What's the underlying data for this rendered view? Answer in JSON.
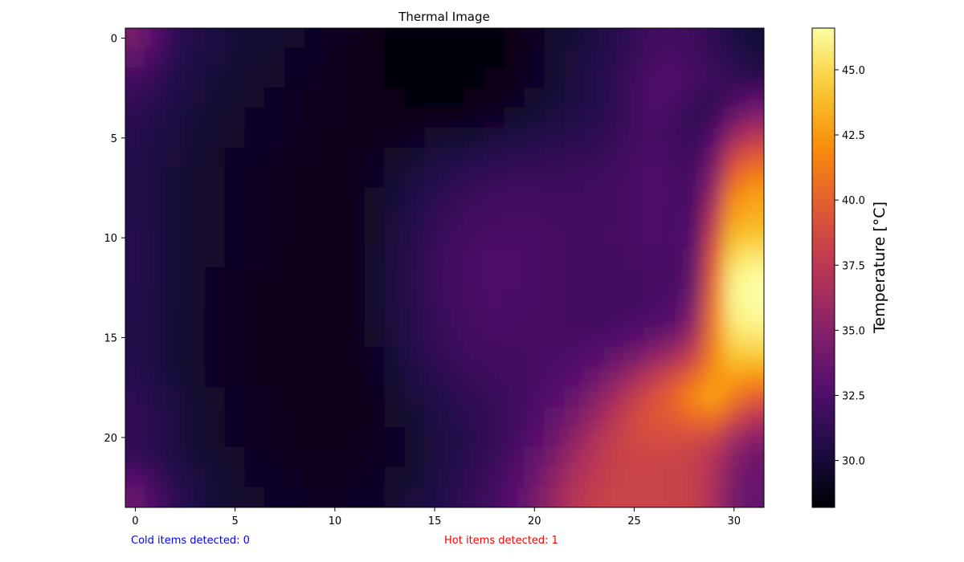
{
  "chart_data": {
    "type": "heatmap",
    "title": "Thermal Image",
    "xlabel": "",
    "ylabel": "",
    "colormap": "inferno",
    "rows": 24,
    "cols": 32,
    "xlim": [
      -0.5,
      31.5
    ],
    "ylim": [
      23.5,
      -0.5
    ],
    "xticks": [
      0,
      5,
      10,
      15,
      20,
      25,
      30
    ],
    "yticks": [
      0,
      5,
      10,
      15,
      20
    ],
    "colorbar": {
      "label": "Temperature [°C]",
      "vmin": 28.2,
      "vmax": 46.6,
      "ticks": [
        "30.0",
        "32.5",
        "35.0",
        "37.5",
        "40.0",
        "42.5",
        "45.0"
      ]
    },
    "values": [
      [
        34.2,
        32.8,
        31.2,
        30.6,
        30.3,
        30.0,
        29.8,
        29.7,
        29.5,
        29.4,
        29.2,
        29.0,
        28.8,
        28.6,
        28.5,
        28.4,
        28.3,
        28.4,
        28.6,
        28.9,
        29.2,
        29.6,
        30.0,
        30.4,
        30.9,
        31.5,
        32.0,
        32.1,
        31.8,
        31.2,
        30.5,
        30.0
      ],
      [
        33.3,
        32.2,
        31.0,
        30.5,
        30.2,
        29.9,
        29.7,
        29.6,
        29.4,
        29.3,
        29.1,
        28.9,
        28.7,
        28.5,
        28.4,
        28.3,
        28.3,
        28.4,
        28.6,
        28.9,
        29.3,
        29.7,
        30.1,
        30.5,
        31.0,
        31.6,
        32.2,
        32.3,
        32.0,
        31.5,
        30.8,
        30.2
      ],
      [
        32.1,
        31.5,
        30.7,
        30.3,
        30.0,
        29.8,
        29.6,
        29.5,
        29.3,
        29.2,
        29.0,
        28.9,
        28.7,
        28.6,
        28.5,
        28.4,
        28.4,
        28.5,
        28.7,
        29.0,
        29.4,
        29.8,
        30.2,
        30.6,
        31.1,
        31.8,
        32.5,
        32.6,
        32.2,
        31.8,
        31.3,
        31.0
      ],
      [
        31.4,
        31.0,
        30.5,
        30.1,
        29.9,
        29.7,
        29.5,
        29.4,
        29.2,
        29.1,
        29.0,
        28.9,
        28.8,
        28.7,
        28.6,
        28.6,
        28.6,
        28.7,
        28.9,
        29.2,
        29.6,
        30.0,
        30.3,
        30.7,
        31.2,
        31.9,
        32.6,
        32.4,
        31.7,
        31.3,
        32.2,
        33.1
      ],
      [
        31.0,
        30.7,
        30.3,
        30.0,
        29.8,
        29.6,
        29.4,
        29.3,
        29.2,
        29.1,
        29.0,
        28.9,
        28.9,
        28.9,
        28.9,
        29.0,
        29.0,
        29.2,
        29.4,
        29.7,
        30.0,
        30.3,
        30.6,
        30.9,
        31.3,
        31.9,
        32.4,
        32.0,
        31.3,
        31.8,
        33.8,
        35.1
      ],
      [
        30.8,
        30.5,
        30.2,
        29.9,
        29.7,
        29.5,
        29.4,
        29.3,
        29.1,
        29.0,
        28.9,
        28.9,
        29.0,
        29.1,
        29.3,
        29.5,
        29.7,
        29.9,
        30.2,
        30.4,
        30.6,
        30.8,
        31.0,
        31.2,
        31.5,
        32.0,
        32.3,
        31.9,
        31.5,
        32.8,
        36.1,
        37.6
      ],
      [
        30.7,
        30.4,
        30.1,
        29.8,
        29.6,
        29.4,
        29.3,
        29.2,
        29.1,
        29.0,
        28.9,
        29.0,
        29.2,
        29.5,
        29.8,
        30.2,
        30.5,
        30.7,
        30.9,
        31.1,
        31.2,
        31.3,
        31.4,
        31.5,
        31.8,
        32.2,
        32.4,
        32.1,
        31.9,
        34.0,
        38.4,
        39.8
      ],
      [
        30.6,
        30.3,
        30.0,
        29.7,
        29.5,
        29.4,
        29.2,
        29.1,
        29.0,
        28.9,
        28.9,
        29.1,
        29.4,
        29.8,
        30.2,
        30.7,
        31.0,
        31.3,
        31.5,
        31.6,
        31.6,
        31.6,
        31.7,
        31.8,
        32.0,
        32.3,
        32.5,
        32.2,
        32.2,
        35.0,
        40.2,
        41.6
      ],
      [
        30.6,
        30.3,
        30.0,
        29.7,
        29.5,
        29.3,
        29.2,
        29.1,
        29.0,
        28.9,
        28.9,
        29.1,
        29.5,
        30.0,
        30.5,
        31.0,
        31.4,
        31.7,
        31.9,
        32.0,
        32.0,
        31.9,
        31.9,
        32.0,
        32.1,
        32.3,
        32.5,
        32.3,
        32.3,
        36.2,
        41.8,
        42.8
      ],
      [
        30.7,
        30.3,
        30.0,
        29.7,
        29.5,
        29.3,
        29.2,
        29.1,
        29.0,
        28.9,
        28.9,
        29.1,
        29.5,
        30.1,
        30.7,
        31.3,
        31.7,
        32.0,
        32.1,
        32.2,
        32.2,
        32.1,
        32.0,
        32.0,
        32.1,
        32.3,
        32.4,
        32.3,
        32.5,
        37.5,
        42.8,
        43.4
      ],
      [
        30.8,
        30.4,
        30.0,
        29.7,
        29.5,
        29.3,
        29.2,
        29.1,
        29.0,
        28.9,
        28.9,
        29.1,
        29.5,
        30.2,
        30.9,
        31.5,
        31.9,
        32.2,
        32.3,
        32.3,
        32.3,
        32.2,
        32.1,
        32.1,
        32.2,
        32.3,
        32.4,
        32.3,
        32.8,
        38.5,
        43.9,
        44.3
      ],
      [
        30.8,
        30.4,
        30.0,
        29.7,
        29.5,
        29.3,
        29.2,
        29.0,
        28.9,
        28.8,
        28.9,
        29.1,
        29.6,
        30.2,
        31.0,
        31.6,
        32.1,
        32.3,
        32.4,
        32.4,
        32.3,
        32.2,
        32.1,
        32.1,
        32.1,
        32.2,
        32.3,
        32.2,
        33.2,
        39.4,
        45.0,
        45.6
      ],
      [
        30.8,
        30.4,
        30.0,
        29.7,
        29.4,
        29.2,
        29.1,
        29.0,
        28.9,
        28.8,
        28.9,
        29.1,
        29.6,
        30.3,
        31.0,
        31.7,
        32.1,
        32.3,
        32.4,
        32.4,
        32.3,
        32.2,
        32.1,
        32.0,
        32.0,
        32.1,
        32.2,
        32.2,
        33.6,
        40.0,
        45.9,
        46.5
      ],
      [
        30.7,
        30.3,
        30.0,
        29.7,
        29.4,
        29.2,
        29.0,
        28.9,
        28.8,
        28.8,
        28.9,
        29.1,
        29.6,
        30.3,
        31.0,
        31.6,
        32.0,
        32.3,
        32.4,
        32.3,
        32.3,
        32.2,
        32.1,
        32.0,
        32.0,
        32.1,
        32.2,
        32.4,
        34.2,
        40.6,
        46.1,
        46.6
      ],
      [
        30.7,
        30.3,
        29.9,
        29.6,
        29.4,
        29.2,
        29.0,
        28.9,
        28.8,
        28.7,
        28.8,
        29.1,
        29.6,
        30.2,
        30.9,
        31.5,
        31.9,
        32.2,
        32.3,
        32.3,
        32.2,
        32.2,
        32.1,
        32.0,
        32.1,
        32.2,
        32.5,
        33.0,
        35.1,
        41.0,
        45.8,
        46.3
      ],
      [
        30.6,
        30.3,
        29.9,
        29.6,
        29.4,
        29.2,
        29.0,
        28.9,
        28.8,
        28.7,
        28.8,
        29.0,
        29.5,
        30.1,
        30.8,
        31.4,
        31.8,
        32.1,
        32.2,
        32.2,
        32.2,
        32.2,
        32.2,
        32.3,
        32.5,
        32.9,
        33.5,
        34.3,
        36.5,
        41.3,
        45.1,
        45.5
      ],
      [
        30.7,
        30.3,
        29.9,
        29.6,
        29.4,
        29.2,
        29.0,
        28.9,
        28.8,
        28.7,
        28.8,
        29.0,
        29.4,
        30.0,
        30.6,
        31.2,
        31.6,
        31.9,
        32.0,
        32.1,
        32.2,
        32.3,
        32.5,
        32.9,
        33.5,
        34.4,
        35.5,
        36.6,
        38.3,
        41.7,
        44.1,
        44.2
      ],
      [
        30.9,
        30.5,
        30.0,
        29.7,
        29.4,
        29.2,
        29.1,
        28.9,
        28.8,
        28.8,
        28.8,
        28.9,
        29.3,
        29.8,
        30.4,
        30.9,
        31.3,
        31.6,
        31.8,
        32.0,
        32.2,
        32.5,
        33.0,
        33.8,
        34.9,
        36.3,
        37.7,
        38.9,
        40.4,
        42.3,
        42.7,
        42.2
      ],
      [
        31.2,
        30.7,
        30.2,
        29.8,
        29.5,
        29.3,
        29.2,
        29.0,
        28.9,
        28.9,
        28.8,
        28.9,
        29.2,
        29.6,
        30.1,
        30.6,
        31.0,
        31.3,
        31.6,
        31.9,
        32.3,
        32.8,
        33.6,
        34.8,
        36.3,
        37.8,
        39.1,
        40.2,
        41.8,
        42.8,
        41.2,
        39.8
      ],
      [
        31.3,
        30.8,
        30.3,
        29.9,
        29.6,
        29.4,
        29.2,
        29.1,
        29.0,
        28.9,
        28.9,
        28.9,
        29.1,
        29.5,
        29.9,
        30.4,
        30.8,
        31.1,
        31.5,
        31.9,
        32.5,
        33.3,
        34.4,
        35.8,
        37.3,
        38.6,
        39.4,
        39.8,
        40.5,
        40.8,
        38.9,
        37.4
      ],
      [
        31.3,
        30.8,
        30.3,
        29.9,
        29.6,
        29.4,
        29.2,
        29.1,
        29.0,
        28.9,
        28.9,
        29.0,
        29.1,
        29.4,
        29.8,
        30.2,
        30.6,
        31.0,
        31.5,
        32.0,
        32.8,
        33.9,
        35.3,
        36.7,
        37.8,
        38.6,
        38.9,
        38.9,
        38.9,
        38.3,
        36.4,
        35.2
      ],
      [
        31.5,
        31.0,
        30.4,
        30.0,
        29.7,
        29.5,
        29.3,
        29.2,
        29.1,
        29.0,
        29.0,
        29.1,
        29.2,
        29.4,
        29.8,
        30.2,
        30.6,
        31.1,
        31.6,
        32.3,
        33.3,
        34.6,
        36.1,
        37.3,
        38.1,
        38.4,
        38.4,
        38.3,
        38.1,
        37.1,
        35.0,
        34.0
      ],
      [
        32.8,
        31.8,
        30.9,
        30.3,
        29.9,
        29.6,
        29.4,
        29.3,
        29.2,
        29.1,
        29.1,
        29.2,
        29.3,
        29.5,
        29.9,
        30.3,
        30.8,
        31.3,
        31.9,
        32.7,
        33.8,
        35.3,
        36.7,
        37.6,
        38.2,
        38.3,
        38.3,
        38.2,
        38.0,
        36.7,
        34.5,
        33.6
      ],
      [
        33.6,
        32.4,
        31.2,
        30.5,
        30.0,
        29.7,
        29.5,
        29.4,
        29.3,
        29.2,
        29.2,
        29.3,
        29.4,
        29.7,
        30.1,
        30.5,
        31.0,
        31.5,
        32.1,
        33.0,
        34.2,
        35.8,
        37.2,
        37.9,
        38.3,
        38.3,
        38.3,
        38.2,
        38.0,
        36.6,
        34.3,
        33.4
      ]
    ]
  },
  "status": {
    "cold_text": "Cold items detected: 0",
    "cold_color": "#0000ff",
    "hot_text": "Hot items detected: 1",
    "hot_color": "#ff0000"
  }
}
